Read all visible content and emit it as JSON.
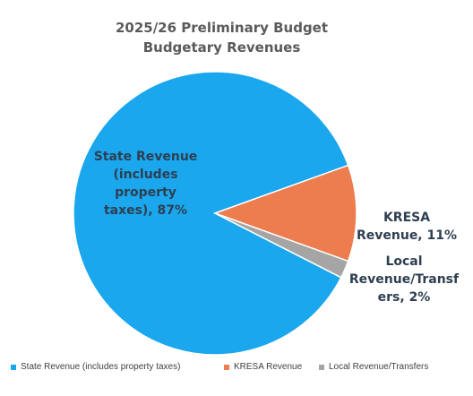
{
  "chart_data": {
    "type": "pie",
    "title": "2025/26 Preliminary Budget",
    "subtitle": "Budgetary Revenues",
    "slices": [
      {
        "name": "State Revenue (includes property taxes)",
        "value": 87,
        "label_lines": [
          "State Revenue",
          "(includes",
          "property",
          "taxes), 87%"
        ],
        "color": "#1aa7ee"
      },
      {
        "name": "KRESA Revenue",
        "value": 11,
        "label_lines": [
          "KRESA",
          "Revenue, 11%"
        ],
        "color": "#ed7d4f"
      },
      {
        "name": "Local Revenue/Transfers",
        "value": 2,
        "label_lines": [
          "Local",
          "Revenue/Transf",
          "ers, 2%"
        ],
        "color": "#a5a5a5"
      }
    ],
    "legend_position": "bottom"
  }
}
